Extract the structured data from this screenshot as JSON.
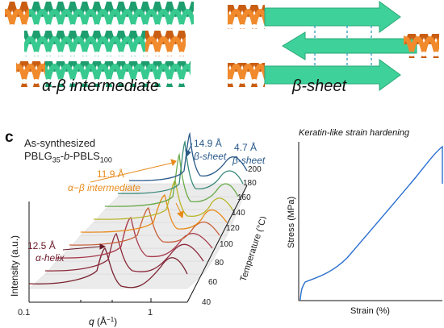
{
  "top": {
    "intermediate_label": "α-β intermediate",
    "sheet_label": "β-sheet",
    "colors": {
      "helix_green": "#2bbf86",
      "helix_orange": "#e8731c",
      "sheet_green": "#3fd19a"
    }
  },
  "panel_c": {
    "letter": "c",
    "sample_line1": "As-synthesized",
    "sample_line2": "PBLG35-b-PBLS100",
    "y_label": "Intensity (a.u.)",
    "x_label": "q (Å⁻¹)",
    "x_ticks": [
      "0.1",
      "1"
    ],
    "z_label": "Temperature (°C)",
    "temperatures": [
      "40",
      "60",
      "80",
      "100",
      "120",
      "140",
      "160",
      "180",
      "200"
    ],
    "annotations": {
      "helix_d": "12.5 Å",
      "helix_label": "α-helix",
      "inter_d": "11.9 Å",
      "inter_label": "α−β intermediate",
      "sheet_d1": "14.9 Å",
      "sheet_label1": "β-sheet",
      "sheet_d2": "4.7 Å",
      "sheet_label2": "β-sheet"
    },
    "trace_colors": [
      "#7a2230",
      "#8c2a3c",
      "#a83a4c",
      "#c8603a",
      "#e88a1a",
      "#b9b52a",
      "#6aaa4a",
      "#3a8a7a",
      "#2a5a8a"
    ]
  },
  "panel_d": {
    "title": "Keratin-like strain hardening",
    "y_label": "Stress (MPa)",
    "x_label": "Strain (%)",
    "line_color": "#2b6fcf"
  }
}
